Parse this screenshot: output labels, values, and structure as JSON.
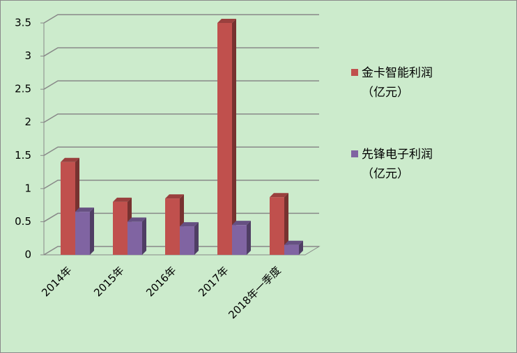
{
  "chart_data": {
    "type": "bar3d",
    "categories": [
      "2014年",
      "2015年",
      "2016年",
      "2017年",
      "2018年一季度"
    ],
    "series": [
      {
        "name": "金卡智能利润（亿元）",
        "color": "#c0504d",
        "values": [
          1.4,
          0.8,
          0.85,
          3.5,
          0.87
        ]
      },
      {
        "name": "先锋电子利润（亿元）",
        "color": "#8064a2",
        "values": [
          0.65,
          0.5,
          0.43,
          0.45,
          0.15
        ]
      }
    ],
    "ylim": [
      0,
      3.5
    ],
    "yticks": [
      0,
      0.5,
      1,
      1.5,
      2,
      2.5,
      3,
      3.5
    ],
    "grid": true,
    "legend": "right"
  }
}
